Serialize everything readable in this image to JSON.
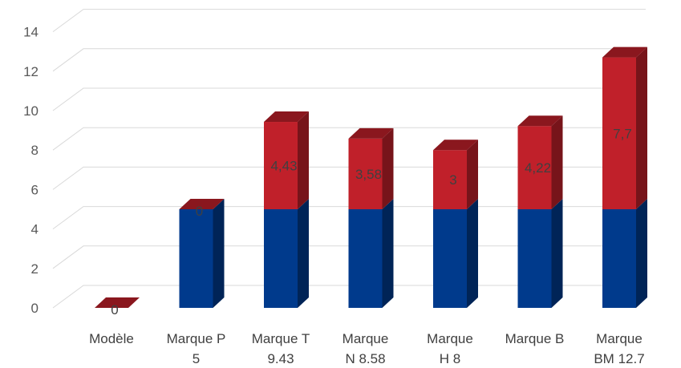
{
  "chart_data": {
    "type": "bar",
    "stacked": true,
    "three_d": true,
    "categories": [
      [
        "Modèle"
      ],
      [
        "Marque P",
        "5"
      ],
      [
        "Marque T",
        "9.43"
      ],
      [
        "Marque",
        "N 8.58"
      ],
      [
        "Marque",
        "H 8"
      ],
      [
        "Marque B"
      ],
      [
        "Marque",
        "BM 12.7"
      ]
    ],
    "series": [
      {
        "values": [
          0,
          5,
          5,
          5,
          5,
          5,
          5
        ],
        "color": "#003A8C"
      },
      {
        "values": [
          0,
          0,
          4.43,
          3.58,
          3,
          4.22,
          7.7
        ],
        "color": "#C0202A"
      }
    ],
    "data_labels": [
      "0",
      "0",
      "4,43",
      "3,58",
      "3",
      "4,22",
      "7,7"
    ],
    "ylim": [
      0,
      14
    ],
    "yticks": [
      "0",
      "2",
      "4",
      "6",
      "8",
      "10",
      "12",
      "14"
    ],
    "ytick_values": [
      0,
      2,
      4,
      6,
      8,
      10,
      12,
      14
    ],
    "grid": true,
    "legend": "none"
  }
}
